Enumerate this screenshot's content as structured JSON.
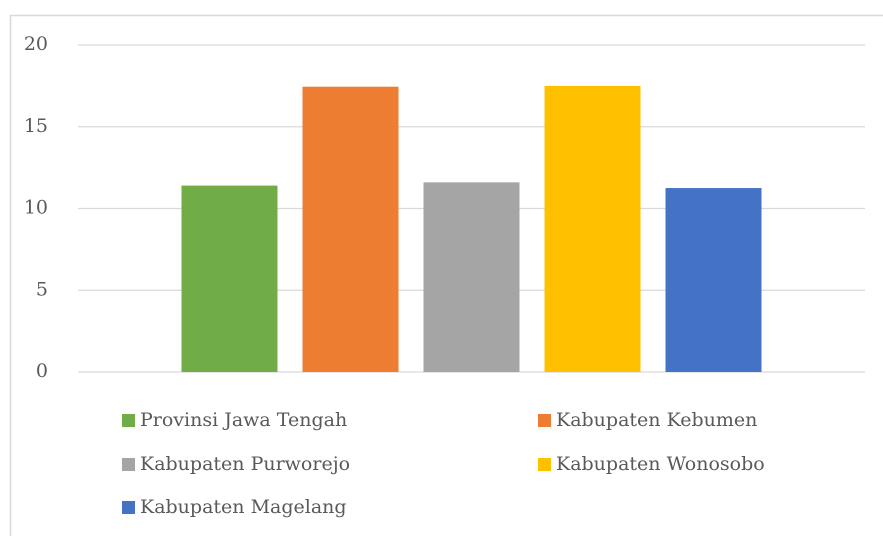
{
  "chart_data": {
    "type": "bar",
    "series": [
      {
        "name": "Provinsi Jawa Tengah",
        "color": "#70ad47",
        "values": [
          11.4
        ]
      },
      {
        "name": "Kabupaten Kebumen",
        "color": "#ed7d31",
        "values": [
          17.45
        ]
      },
      {
        "name": "Kabupaten Purworejo",
        "color": "#a5a5a5",
        "values": [
          11.6
        ]
      },
      {
        "name": "Kabupaten Wonosobo",
        "color": "#ffc000",
        "values": [
          17.5
        ]
      },
      {
        "name": "Kabupaten Magelang",
        "color": "#4472c4",
        "values": [
          11.25
        ]
      }
    ],
    "ylim": [
      0,
      20
    ],
    "yticks": [
      0,
      5,
      10,
      15,
      20
    ],
    "grid": true,
    "legend": "bottom"
  }
}
